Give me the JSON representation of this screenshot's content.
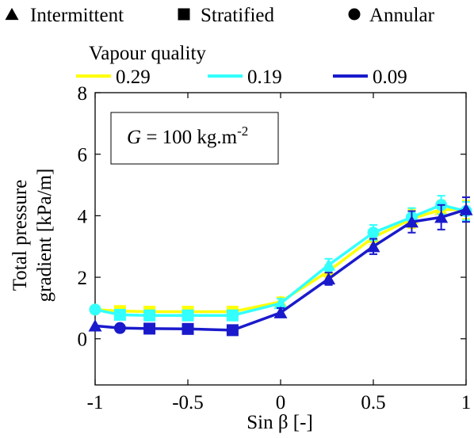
{
  "chart_data": {
    "type": "line",
    "xlabel": "Sin β [-]",
    "ylabel": [
      "Total pressure",
      "gradient [kPa/m]"
    ],
    "xlim": [
      -1,
      1
    ],
    "ylim": [
      -1.5,
      8
    ],
    "xticks": [
      -1,
      -0.5,
      0,
      0.5,
      1
    ],
    "xtick_labels": [
      "-1",
      "-0.5",
      "0",
      "0.5",
      "1"
    ],
    "yticks": [
      0,
      2,
      4,
      6,
      8
    ],
    "ytick_labels": [
      "0",
      "2",
      "4",
      "6",
      "8"
    ],
    "grid": false,
    "legend_markers": {
      "position": "top",
      "items": [
        {
          "symbol": "triangle",
          "label": "Intermittent"
        },
        {
          "symbol": "square",
          "label": "Stratified"
        },
        {
          "symbol": "circle",
          "label": "Annular"
        }
      ]
    },
    "legend_series": {
      "title": "Vapour quality",
      "position": "top",
      "labels": [
        "0.29",
        "0.19",
        "0.09"
      ]
    },
    "annotation": {
      "prefix": "G",
      "text": " = 100 kg.m",
      "superscript": "-2"
    },
    "series": [
      {
        "name": "0.29",
        "color": "#ffff00",
        "x": [
          -1,
          -0.866,
          -0.707,
          -0.5,
          -0.259,
          0,
          0.259,
          0.5,
          0.707,
          0.866,
          1
        ],
        "y": [
          0.95,
          0.9,
          0.88,
          0.88,
          0.88,
          1.2,
          2.2,
          3.3,
          3.9,
          4.2,
          4.2
        ],
        "markers": [
          "circle",
          "square",
          "square",
          "square",
          "square",
          "triangle",
          "triangle",
          "triangle",
          "triangle",
          "triangle",
          "triangle"
        ],
        "err": [
          0,
          0,
          0,
          0,
          0.1,
          0.15,
          0.2,
          0.25,
          0.3,
          0.3,
          0.3
        ]
      },
      {
        "name": "0.19",
        "color": "#33ffff",
        "x": [
          -1,
          -0.866,
          -0.707,
          -0.5,
          -0.259,
          0,
          0.259,
          0.5,
          0.707,
          0.866,
          1
        ],
        "y": [
          0.95,
          0.78,
          0.76,
          0.76,
          0.76,
          1.15,
          2.4,
          3.45,
          3.95,
          4.35,
          4.15
        ],
        "markers": [
          "circle",
          "square",
          "square",
          "square",
          "square",
          "triangle",
          "triangle",
          "circle",
          "circle",
          "circle",
          "circle"
        ],
        "err": [
          0,
          0,
          0,
          0,
          0.1,
          0.15,
          0.2,
          0.25,
          0.3,
          0.3,
          0.3
        ]
      },
      {
        "name": "0.09",
        "color": "#1a1acc",
        "x": [
          -1,
          -0.866,
          -0.707,
          -0.5,
          -0.259,
          0,
          0.259,
          0.5,
          0.707,
          0.866,
          1
        ],
        "y": [
          0.42,
          0.35,
          0.33,
          0.32,
          0.28,
          0.85,
          1.95,
          3.0,
          3.8,
          3.95,
          4.2
        ],
        "markers": [
          "triangle",
          "circle",
          "square",
          "square",
          "square",
          "triangle",
          "triangle",
          "triangle",
          "triangle",
          "triangle",
          "triangle"
        ],
        "err": [
          0,
          0,
          0,
          0,
          0.1,
          0.15,
          0.2,
          0.25,
          0.35,
          0.4,
          0.4
        ]
      }
    ]
  }
}
